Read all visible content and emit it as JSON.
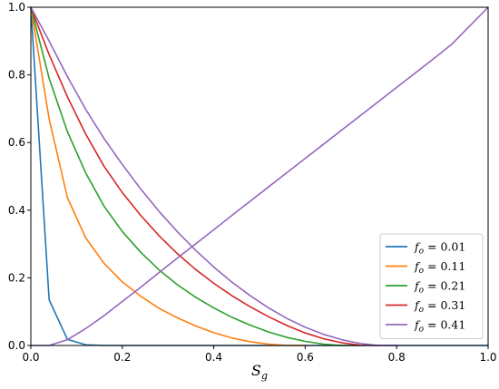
{
  "chart_data": {
    "type": "line",
    "title": "",
    "xlabel": "S",
    "xlabel_sub": "g",
    "ylabel": "",
    "xlim": [
      0,
      1
    ],
    "ylim": [
      0,
      1
    ],
    "x_ticks": [
      "0.0",
      "0.2",
      "0.4",
      "0.6",
      "0.8",
      "1.0"
    ],
    "y_ticks": [
      "0.0",
      "0.2",
      "0.4",
      "0.6",
      "0.8",
      "1.0"
    ],
    "grid": false,
    "legend_position": "lower-right",
    "series": [
      {
        "name": "0.01",
        "legend_prefix": "f",
        "legend_sub": "o",
        "legend_eq": " = ",
        "color": "#1f77b4",
        "x": [
          0.0,
          0.04,
          0.08,
          0.12,
          0.16,
          0.2,
          0.4,
          0.6,
          0.8,
          1.0
        ],
        "y": [
          1.0,
          0.135,
          0.018,
          0.002,
          0.0,
          0.0,
          0.0,
          0.0,
          0.0,
          0.0
        ]
      },
      {
        "name": "0.11",
        "legend_prefix": "f",
        "legend_sub": "o",
        "legend_eq": " = ",
        "color": "#ff7f0e",
        "x": [
          0.0,
          0.04,
          0.08,
          0.12,
          0.16,
          0.2,
          0.24,
          0.28,
          0.32,
          0.36,
          0.4,
          0.44,
          0.48,
          0.52,
          0.56,
          0.6
        ],
        "y": [
          1.0,
          0.67,
          0.437,
          0.318,
          0.243,
          0.188,
          0.146,
          0.11,
          0.082,
          0.058,
          0.038,
          0.022,
          0.011,
          0.004,
          0.0,
          0.0
        ]
      },
      {
        "name": "0.21",
        "legend_prefix": "f",
        "legend_sub": "o",
        "legend_eq": " = ",
        "color": "#2ca02c",
        "x": [
          0.0,
          0.04,
          0.08,
          0.12,
          0.16,
          0.2,
          0.24,
          0.28,
          0.32,
          0.36,
          0.4,
          0.44,
          0.48,
          0.52,
          0.56,
          0.6,
          0.64,
          0.68,
          0.72
        ],
        "y": [
          1.0,
          0.79,
          0.632,
          0.51,
          0.412,
          0.337,
          0.276,
          0.224,
          0.18,
          0.143,
          0.111,
          0.083,
          0.06,
          0.04,
          0.024,
          0.012,
          0.004,
          0.0,
          0.0
        ]
      },
      {
        "name": "0.31",
        "legend_prefix": "f",
        "legend_sub": "o",
        "legend_eq": " = ",
        "color": "#d62728",
        "x": [
          0.0,
          0.04,
          0.08,
          0.12,
          0.16,
          0.2,
          0.24,
          0.28,
          0.32,
          0.36,
          0.4,
          0.44,
          0.48,
          0.52,
          0.56,
          0.6,
          0.64,
          0.68,
          0.72,
          0.76
        ],
        "y": [
          1.0,
          0.86,
          0.735,
          0.625,
          0.53,
          0.452,
          0.385,
          0.325,
          0.272,
          0.225,
          0.184,
          0.147,
          0.114,
          0.085,
          0.059,
          0.037,
          0.02,
          0.008,
          0.001,
          0.0
        ]
      },
      {
        "name": "0.41",
        "legend_prefix": "f",
        "legend_sub": "o",
        "legend_eq": " = ",
        "color": "#9467bd",
        "x": [
          0.0,
          0.04,
          0.08,
          0.12,
          0.16,
          0.2,
          0.24,
          0.28,
          0.32,
          0.36,
          0.4,
          0.44,
          0.48,
          0.52,
          0.56,
          0.6,
          0.64,
          0.68,
          0.72,
          0.76,
          0.8
        ],
        "y": [
          1.0,
          0.9,
          0.795,
          0.698,
          0.612,
          0.535,
          0.463,
          0.397,
          0.337,
          0.282,
          0.232,
          0.187,
          0.147,
          0.111,
          0.08,
          0.054,
          0.033,
          0.017,
          0.006,
          0.0,
          0.0
        ]
      },
      {
        "name": "",
        "legend_prefix": "",
        "legend_sub": "",
        "legend_eq": "",
        "color": "#9467bd",
        "in_legend": false,
        "x": [
          0.0,
          0.04,
          0.08,
          0.12,
          0.16,
          0.2,
          0.24,
          0.28,
          0.32,
          0.36,
          0.4,
          0.44,
          0.48,
          0.52,
          0.56,
          0.6,
          0.64,
          0.68,
          0.72,
          0.76,
          0.8,
          0.84,
          0.88,
          0.92,
          0.96,
          1.0
        ],
        "y": [
          0.0,
          0.0,
          0.017,
          0.05,
          0.088,
          0.13,
          0.172,
          0.215,
          0.258,
          0.3,
          0.342,
          0.385,
          0.427,
          0.469,
          0.511,
          0.553,
          0.595,
          0.637,
          0.679,
          0.721,
          0.763,
          0.805,
          0.847,
          0.89,
          0.945,
          1.0
        ]
      }
    ]
  }
}
